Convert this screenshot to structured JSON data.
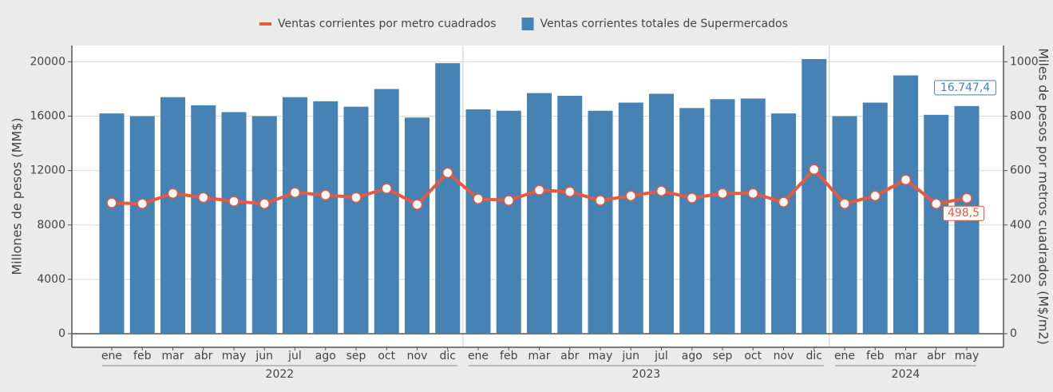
{
  "chart_data": {
    "type": "bar",
    "legend": "top",
    "grid": true,
    "y_label": "Millones de pesos (MM$)",
    "y2_label": "Miles de pesos por metros cuadrados (M$/m2)",
    "categories": [
      "ene",
      "feb",
      "mar",
      "abr",
      "may",
      "jun",
      "jul",
      "ago",
      "sep",
      "oct",
      "nov",
      "dic",
      "ene",
      "feb",
      "mar",
      "abr",
      "may",
      "jun",
      "jul",
      "ago",
      "sep",
      "oct",
      "nov",
      "dic",
      "ene",
      "feb",
      "mar",
      "abr",
      "may"
    ],
    "groups": [
      {
        "name": "2022",
        "count": 12
      },
      {
        "name": "2023",
        "count": 12
      },
      {
        "name": "2024",
        "count": 5
      }
    ],
    "ylim": [
      -1000,
      21200
    ],
    "yticks": [
      0,
      4000,
      8000,
      12000,
      16000,
      20000
    ],
    "y2lim": [
      -50,
      1060
    ],
    "y2ticks": [
      0,
      200,
      400,
      600,
      800,
      1000
    ],
    "series": [
      {
        "name": "Ventas corrientes por metro cuadrados",
        "type": "line",
        "axis": "y2",
        "color": "#e8593f",
        "values": [
          481,
          478,
          516,
          501,
          487,
          478,
          519,
          510,
          501,
          534,
          475,
          592,
          496,
          490,
          528,
          522,
          490,
          507,
          525,
          499,
          516,
          516,
          484,
          604,
          478,
          507,
          566,
          478,
          498.5
        ],
        "value_labels": [
          null,
          null,
          null,
          null,
          null,
          null,
          null,
          null,
          null,
          null,
          null,
          null,
          null,
          null,
          null,
          null,
          null,
          null,
          null,
          null,
          null,
          null,
          null,
          null,
          null,
          null,
          null,
          null,
          "498,5"
        ]
      },
      {
        "name": "Ventas corrientes totales de Supermercados",
        "type": "bar",
        "axis": "y",
        "color": "#4682b4",
        "values": [
          16200,
          16000,
          17400,
          16800,
          16300,
          16000,
          17400,
          17100,
          16700,
          18000,
          15900,
          19900,
          16500,
          16400,
          17700,
          17500,
          16400,
          17000,
          17650,
          16600,
          17250,
          17300,
          16200,
          20200,
          16000,
          17000,
          19000,
          16100,
          16747.4
        ],
        "value_labels": [
          null,
          null,
          null,
          null,
          null,
          null,
          null,
          null,
          null,
          null,
          null,
          null,
          null,
          null,
          null,
          null,
          null,
          null,
          null,
          null,
          null,
          null,
          null,
          null,
          null,
          null,
          null,
          null,
          "16.747,4"
        ]
      }
    ]
  }
}
